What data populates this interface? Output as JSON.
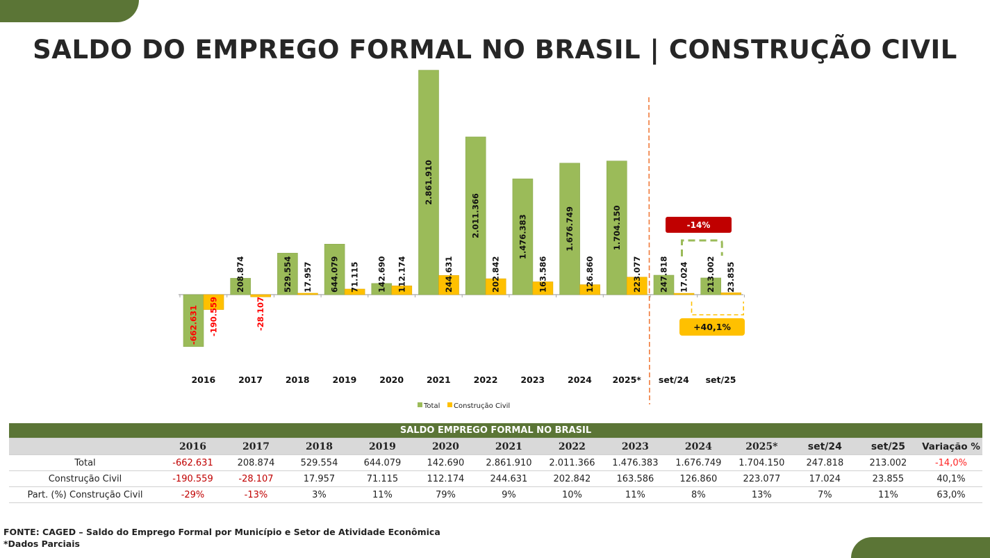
{
  "title": "SALDO DO EMPREGO FORMAL NO BRASIL | CONSTRUÇÃO CIVIL",
  "colors": {
    "brand_green": "#5b7536",
    "total": "#9bbb59",
    "construcao": "#ffc000",
    "negative_label": "#ff0000",
    "divider": "#f07a3a",
    "callout_red": "#c00000",
    "callout_yellow": "#ffc000"
  },
  "chart_data": {
    "type": "bar",
    "title": "",
    "xlabel": "",
    "ylabel": "",
    "categories": [
      "2016",
      "2017",
      "2018",
      "2019",
      "2020",
      "2021",
      "2022",
      "2023",
      "2024",
      "2025*",
      "set/24",
      "set/25"
    ],
    "series": [
      {
        "name": "Total",
        "values": [
          -662631,
          208874,
          529554,
          644079,
          142690,
          2861910,
          2011366,
          1476383,
          1676749,
          1704150,
          247818,
          213002
        ],
        "labels": [
          "-662.631",
          "208.874",
          "529.554",
          "644.079",
          "142.690",
          "2.861.910",
          "2.011.366",
          "1.476.383",
          "1.676.749",
          "1.704.150",
          "247.818",
          "213.002"
        ]
      },
      {
        "name": "Construção Civil",
        "values": [
          -190559,
          -28107,
          17957,
          71115,
          112174,
          244631,
          202842,
          163586,
          126860,
          223077,
          17024,
          23855
        ],
        "labels": [
          "-190.559",
          "-28.107",
          "17.957",
          "71.115",
          "112.174",
          "244.631",
          "202.842",
          "163.586",
          "126.860",
          "223.077",
          "17.024",
          "23.855"
        ]
      }
    ],
    "ylim": [
      -700000,
      2900000
    ],
    "grid": false,
    "legend": "bottom-center",
    "annotations": [
      {
        "text": "-14%",
        "series": "Total",
        "between": [
          "set/24",
          "set/25"
        ]
      },
      {
        "text": "+40,1%",
        "series": "Construção Civil",
        "between": [
          "set/24",
          "set/25"
        ]
      }
    ],
    "divider_after": "2025*"
  },
  "table": {
    "title": "SALDO EMPREGO FORMAL NO BRASIL",
    "columns": [
      "",
      "2016",
      "2017",
      "2018",
      "2019",
      "2020",
      "2021",
      "2022",
      "2023",
      "2024",
      "2025*",
      "set/24",
      "set/25",
      "Variação %"
    ],
    "rows": [
      {
        "label": "Total",
        "cells": [
          "-662.631",
          "208.874",
          "529.554",
          "644.079",
          "142.690",
          "2.861.910",
          "2.011.366",
          "1.476.383",
          "1.676.749",
          "1.704.150",
          "247.818",
          "213.002",
          "-14,0%"
        ]
      },
      {
        "label": "Construção Civil",
        "cells": [
          "-190.559",
          "-28.107",
          "17.957",
          "71.115",
          "112.174",
          "244.631",
          "202.842",
          "163.586",
          "126.860",
          "223.077",
          "17.024",
          "23.855",
          "40,1%"
        ]
      },
      {
        "label": "Part. (%) Construção Civil",
        "cells": [
          "-29%",
          "-13%",
          "3%",
          "11%",
          "79%",
          "9%",
          "10%",
          "11%",
          "8%",
          "13%",
          "7%",
          "11%",
          "63,0%"
        ]
      }
    ]
  },
  "footer": {
    "source": "FONTE: CAGED – Saldo do Emprego Formal por Município e Setor de Atividade Econômica",
    "note": "*Dados Parciais"
  }
}
